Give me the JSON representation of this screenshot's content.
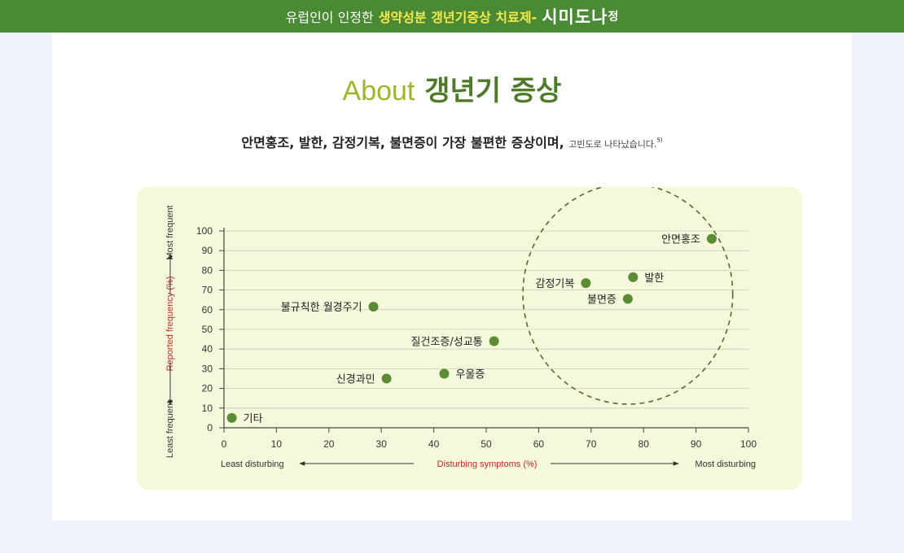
{
  "banner": {
    "prefix": "유럽인이 인정한",
    "highlight": "생약성분 갱년기증상 치료제-",
    "brand": "시미도나",
    "brand_suffix": "정"
  },
  "header": {
    "title_en": "About",
    "title_ko": "갱년기 증상",
    "subtitle_main": "안면홍조, 발한, 감정기복, 불면증이 가장 불편한 증상이며,",
    "subtitle_small": "고빈도로 나타났습니다.",
    "subtitle_ref": "5)"
  },
  "colors": {
    "banner_bg": "#4b8a35",
    "highlight": "#f6e84a",
    "point": "#5a8c34",
    "axis_red": "#c0272d",
    "dashed_circle": "#4f6e2a"
  },
  "chart_data": {
    "type": "scatter",
    "xlabel": "Disturbing symptoms (%)",
    "ylabel": "Reported frequency (%)",
    "x_left_label": "Least disturbing",
    "x_right_label": "Most disturbing",
    "y_top_label": "Most frequent",
    "y_bottom_label": "Least frequent",
    "xlim": [
      0,
      100
    ],
    "ylim": [
      0,
      100
    ],
    "x_ticks": [
      "0",
      "10",
      "20",
      "30",
      "40",
      "50",
      "60",
      "70",
      "80",
      "90",
      "100"
    ],
    "y_ticks": [
      "0",
      "10",
      "20",
      "30",
      "40",
      "50",
      "60",
      "70",
      "80",
      "90",
      "100"
    ],
    "grid": true,
    "points": [
      {
        "label": "기타",
        "x": 1.5,
        "y": 5
      },
      {
        "label": "신경과민",
        "x": 31,
        "y": 25
      },
      {
        "label": "우울증",
        "x": 42,
        "y": 27.5
      },
      {
        "label": "질건조증/성교통",
        "x": 51.5,
        "y": 44
      },
      {
        "label": "불규칙한 월경주기",
        "x": 28.5,
        "y": 61.5
      },
      {
        "label": "감정기복",
        "x": 69,
        "y": 73.5
      },
      {
        "label": "발한",
        "x": 78,
        "y": 76.5
      },
      {
        "label": "불면증",
        "x": 77,
        "y": 65.5
      },
      {
        "label": "안면홍조",
        "x": 93,
        "y": 96
      }
    ],
    "highlight_circle": {
      "cx": 77,
      "cy": 68,
      "rx": 20,
      "ry": 56
    }
  }
}
